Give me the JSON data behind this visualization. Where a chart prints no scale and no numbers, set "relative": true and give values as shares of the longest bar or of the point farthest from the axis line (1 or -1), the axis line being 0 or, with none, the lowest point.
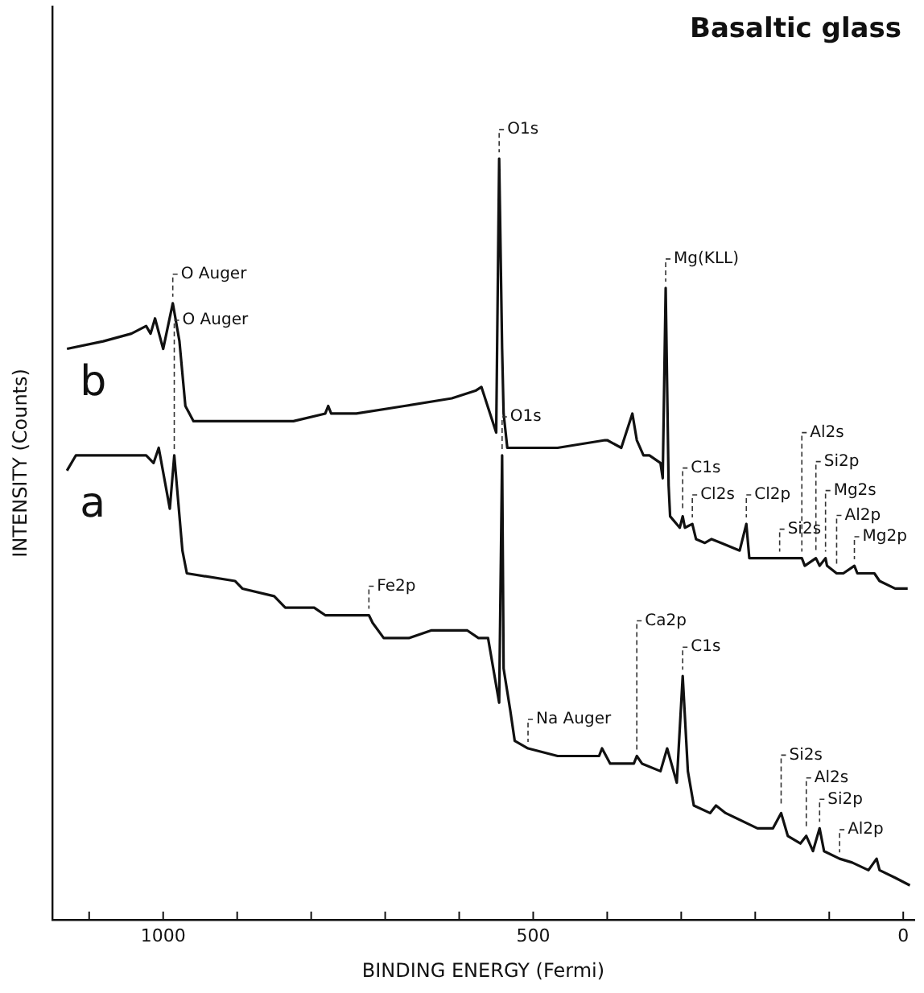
{
  "chart_data": {
    "type": "line",
    "title": "Basaltic glass",
    "xlabel": "BINDING ENERGY (Fermi)",
    "ylabel": "INTENSITY (Counts)",
    "relative": true,
    "grid": false,
    "legend": false,
    "xlim": [
      1150,
      -15
    ],
    "xticks": [
      {
        "value": 1100,
        "label": null
      },
      1000,
      {
        "value": 900,
        "label": null
      },
      {
        "value": 800,
        "label": null
      },
      {
        "value": 700,
        "label": null
      },
      {
        "value": 600,
        "label": null
      },
      500,
      {
        "value": 400,
        "label": null
      },
      {
        "value": 300,
        "label": null
      },
      {
        "value": 200,
        "label": null
      },
      {
        "value": 100,
        "label": null
      },
      0
    ],
    "series": [
      {
        "name": "b",
        "color": "#111111",
        "x": [
          1130,
          1081,
          1043,
          1023,
          1017,
          1011,
          1000,
          987,
          978,
          970,
          959,
          942,
          889,
          824,
          781,
          777,
          773,
          739,
          674,
          610,
          578,
          570,
          550,
          546,
          542,
          540,
          535,
          518,
          467,
          403,
          400,
          381,
          366,
          360,
          351,
          343,
          328,
          325,
          321,
          317,
          315,
          302,
          298,
          295,
          285,
          280,
          268,
          259,
          246,
          221,
          212,
          208,
          182,
          167,
          154,
          137,
          133,
          118,
          113,
          105,
          103,
          90,
          81,
          66,
          62,
          43,
          39,
          32,
          11,
          -6
        ],
        "values": [
          0.75,
          0.76,
          0.77,
          0.78,
          0.77,
          0.79,
          0.75,
          0.81,
          0.76,
          0.675,
          0.655,
          0.655,
          0.655,
          0.655,
          0.665,
          0.675,
          0.665,
          0.665,
          0.675,
          0.685,
          0.695,
          0.7,
          0.64,
          1.0,
          0.75,
          0.665,
          0.62,
          0.62,
          0.62,
          0.63,
          0.63,
          0.62,
          0.665,
          0.63,
          0.61,
          0.61,
          0.6,
          0.58,
          0.83,
          0.57,
          0.53,
          0.515,
          0.53,
          0.515,
          0.52,
          0.5,
          0.495,
          0.5,
          0.495,
          0.485,
          0.52,
          0.475,
          0.475,
          0.475,
          0.475,
          0.475,
          0.465,
          0.475,
          0.465,
          0.475,
          0.465,
          0.455,
          0.455,
          0.465,
          0.455,
          0.455,
          0.455,
          0.445,
          0.435,
          0.435
        ]
      },
      {
        "name": "a",
        "color": "#111111",
        "x": [
          1130,
          1118,
          1066,
          1023,
          1013,
          1006,
          991,
          985,
          974,
          968,
          903,
          893,
          850,
          835,
          809,
          796,
          781,
          732,
          722,
          717,
          702,
          668,
          638,
          589,
          574,
          561,
          546,
          542,
          540,
          531,
          525,
          507,
          467,
          411,
          407,
          396,
          364,
          360,
          353,
          328,
          319,
          306,
          298,
          291,
          283,
          261,
          253,
          240,
          197,
          176,
          165,
          156,
          139,
          131,
          122,
          113,
          107,
          86,
          69,
          47,
          36,
          32,
          11,
          -9
        ],
        "values": [
          0.59,
          0.61,
          0.61,
          0.61,
          0.6,
          0.62,
          0.54,
          0.61,
          0.485,
          0.455,
          0.445,
          0.435,
          0.425,
          0.41,
          0.41,
          0.41,
          0.4,
          0.4,
          0.4,
          0.39,
          0.37,
          0.37,
          0.38,
          0.38,
          0.37,
          0.37,
          0.285,
          0.61,
          0.33,
          0.275,
          0.235,
          0.225,
          0.215,
          0.215,
          0.225,
          0.205,
          0.205,
          0.215,
          0.205,
          0.195,
          0.225,
          0.18,
          0.32,
          0.195,
          0.15,
          0.14,
          0.15,
          0.14,
          0.12,
          0.12,
          0.14,
          0.11,
          0.1,
          0.11,
          0.09,
          0.12,
          0.09,
          0.08,
          0.075,
          0.065,
          0.08,
          0.065,
          0.055,
          0.045
        ]
      }
    ],
    "annotations": [
      {
        "text": "O Auger",
        "x": 987,
        "y": 0.81
      },
      {
        "text": "O1s",
        "x": 546,
        "y": 1.0
      },
      {
        "text": "Mg(KLL)",
        "x": 321,
        "y": 0.83
      },
      {
        "text": "C1s",
        "x": 298,
        "y": 0.53
      },
      {
        "text": "Cl2s",
        "x": 285,
        "y": 0.52
      },
      {
        "text": "Cl2p",
        "x": 212,
        "y": 0.52
      },
      {
        "text": "Si2s",
        "x": 167,
        "y": 0.475
      },
      {
        "text": "Al2s",
        "x": 137,
        "y": 0.475
      },
      {
        "text": "Si2p",
        "x": 118,
        "y": 0.475
      },
      {
        "text": "Mg2s",
        "x": 105,
        "y": 0.475
      },
      {
        "text": "Al2p",
        "x": 90,
        "y": 0.455
      },
      {
        "text": "Mg2p",
        "x": 66,
        "y": 0.465
      },
      {
        "text": "O Auger",
        "x": 985,
        "y": 0.61
      },
      {
        "text": "O1s",
        "x": 542,
        "y": 0.61
      },
      {
        "text": "Fe2p",
        "x": 722,
        "y": 0.4
      },
      {
        "text": "Na Auger",
        "x": 507,
        "y": 0.225
      },
      {
        "text": "Ca2p",
        "x": 360,
        "y": 0.215
      },
      {
        "text": "C1s",
        "x": 298,
        "y": 0.32
      },
      {
        "text": "Si2s",
        "x": 165,
        "y": 0.14
      },
      {
        "text": "Al2s",
        "x": 131,
        "y": 0.11
      },
      {
        "text": "Si2p",
        "x": 113,
        "y": 0.12
      },
      {
        "text": "Al2p",
        "x": 86,
        "y": 0.08
      }
    ]
  }
}
